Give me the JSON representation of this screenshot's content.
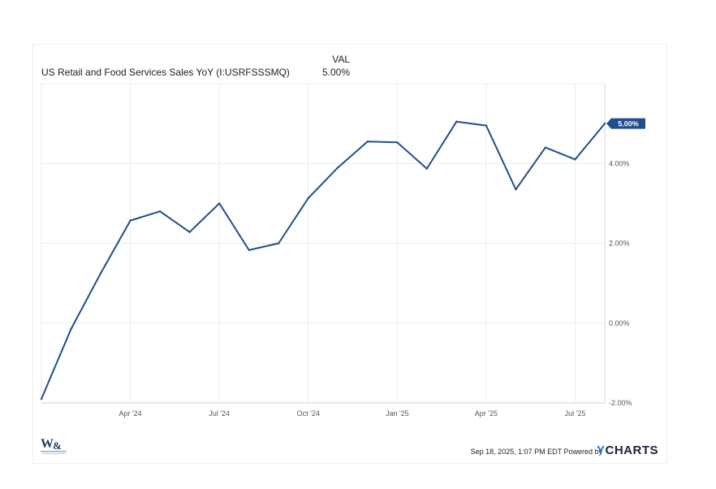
{
  "legend": {
    "header": "VAL",
    "series_name": "US Retail and Food Services Sales YoY (I:USRFSSSMQ)",
    "series_value": "5.00%"
  },
  "footer": {
    "timestamp": "Sep 18, 2025, 1:07 PM EDT Powered by",
    "logo_y": "Y",
    "logo_rest": "CHARTS"
  },
  "colors": {
    "line": "#1f4e8c",
    "grid": "#ececec",
    "axis_text": "#555555"
  },
  "chart_data": {
    "type": "line",
    "series": [
      {
        "name": "US Retail and Food Services Sales YoY (I:USRFSSSMQ)",
        "x": [
          "2024-01",
          "2024-02",
          "2024-03",
          "2024-04",
          "2024-05",
          "2024-06",
          "2024-07",
          "2024-08",
          "2024-09",
          "2024-10",
          "2024-11",
          "2024-12",
          "2025-01",
          "2025-02",
          "2025-03",
          "2025-04",
          "2025-05",
          "2025-06",
          "2025-07",
          "2025-08"
        ],
        "values": [
          -1.9,
          -0.15,
          1.25,
          2.57,
          2.8,
          2.28,
          3.0,
          1.83,
          2.0,
          3.13,
          3.9,
          4.55,
          4.53,
          3.87,
          5.05,
          4.95,
          3.35,
          4.4,
          4.1,
          5.0
        ]
      }
    ],
    "x_ticks": [
      {
        "x": "2024-04",
        "label": "Apr '24"
      },
      {
        "x": "2024-07",
        "label": "Jul '24"
      },
      {
        "x": "2024-10",
        "label": "Oct '24"
      },
      {
        "x": "2025-01",
        "label": "Jan '25"
      },
      {
        "x": "2025-04",
        "label": "Apr '25"
      },
      {
        "x": "2025-07",
        "label": "Jul '25"
      }
    ],
    "y_ticks": [
      {
        "value": -2,
        "label": "-2.00%"
      },
      {
        "value": 0,
        "label": "0.00%"
      },
      {
        "value": 2,
        "label": "2.00%"
      },
      {
        "value": 4,
        "label": "4.00%"
      }
    ],
    "ylim": [
      -2,
      6
    ],
    "xlim": [
      "2024-01",
      "2025-08"
    ],
    "last_value_label": "5.00%",
    "grid": true,
    "y_axis_side": "right"
  }
}
